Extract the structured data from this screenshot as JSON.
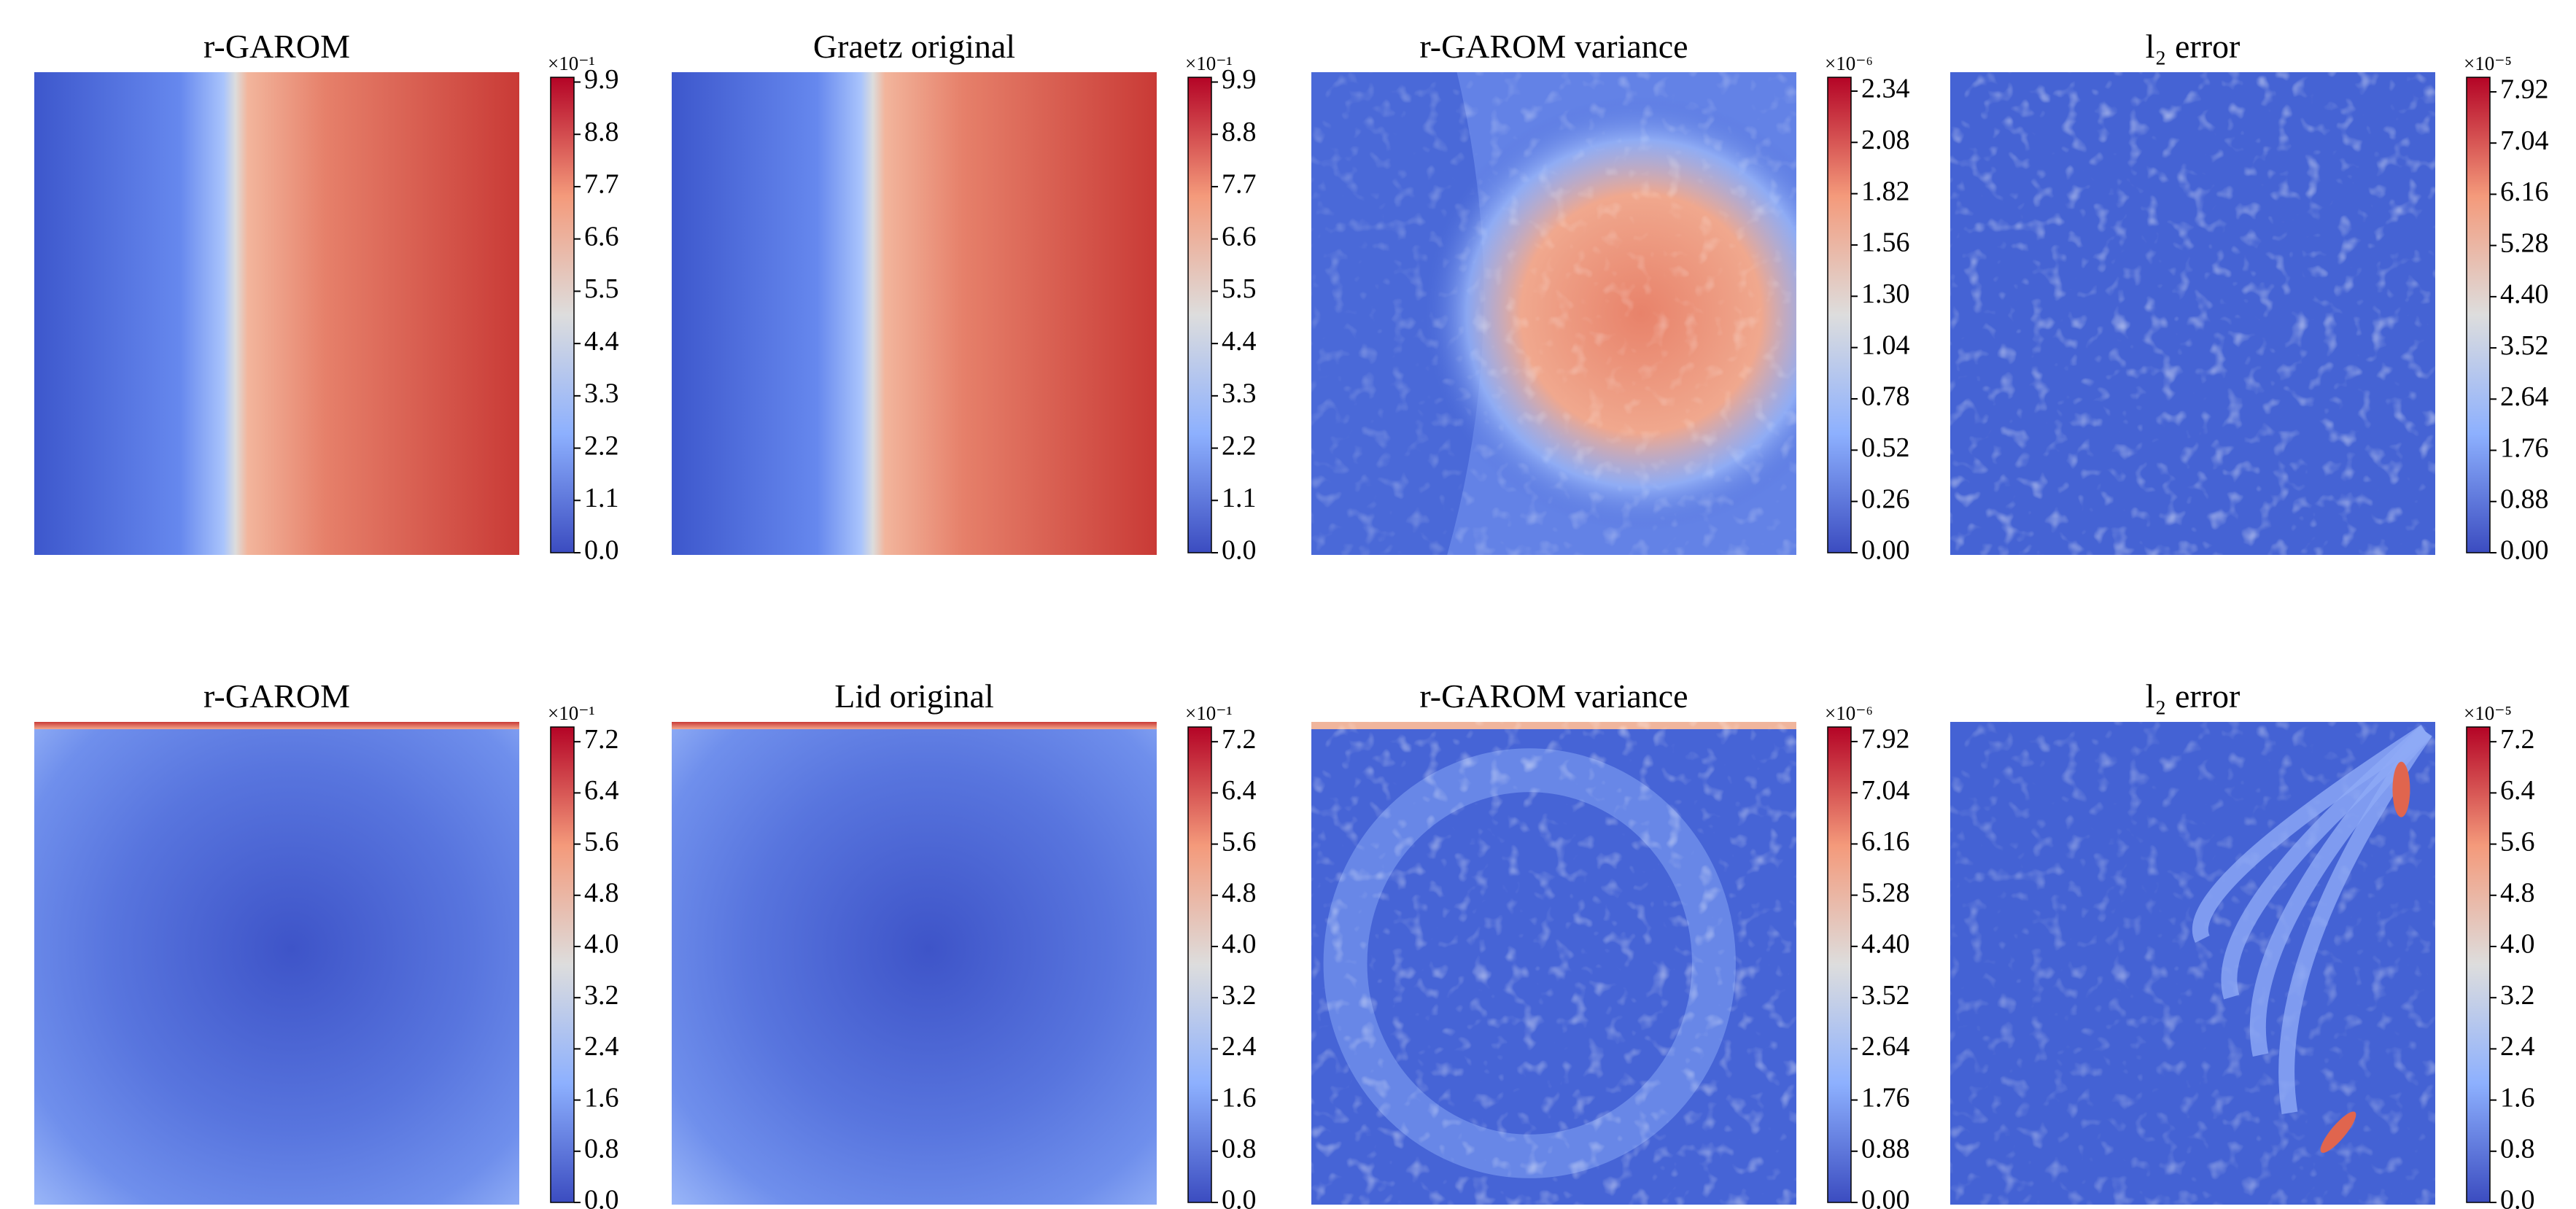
{
  "chart_data": [
    {
      "type": "heatmap",
      "title": "r-GAROM",
      "colormap": "coolwarm",
      "scale_label": "×10⁻¹",
      "ylim": [
        0,
        10.0
      ],
      "yticks": [
        {
          "value": 0,
          "label": "0.0"
        },
        1.1,
        2.2,
        3.3,
        4.4,
        5.5,
        6.6,
        7.7,
        8.8,
        9.9
      ]
    },
    {
      "type": "heatmap",
      "title": "Graetz original",
      "colormap": "coolwarm",
      "scale_label": "×10⁻¹",
      "ylim": [
        0,
        10.0
      ],
      "yticks": [
        {
          "value": 0,
          "label": "0.0"
        },
        1.1,
        2.2,
        3.3,
        4.4,
        5.5,
        6.6,
        7.7,
        8.8,
        9.9
      ]
    },
    {
      "type": "heatmap",
      "title": "r-GAROM variance",
      "colormap": "coolwarm",
      "scale_label": "×10⁻⁶",
      "ylim": [
        0,
        2.41
      ],
      "yticks": [
        {
          "value": 0,
          "label": "0.00"
        },
        0.26,
        0.52,
        0.78,
        1.04,
        {
          "value": 1.3,
          "label": "1.30"
        },
        1.56,
        1.82,
        2.08,
        2.34
      ]
    },
    {
      "type": "heatmap",
      "title": "l₂ error",
      "colormap": "coolwarm",
      "scale_label": "×10⁻⁵",
      "ylim": [
        0,
        8.17
      ],
      "yticks": [
        {
          "value": 0,
          "label": "0.00"
        },
        0.88,
        1.76,
        2.64,
        3.52,
        {
          "value": 4.4,
          "label": "4.40"
        },
        5.28,
        6.16,
        7.04,
        7.92
      ]
    },
    {
      "type": "heatmap",
      "title": "r-GAROM",
      "colormap": "coolwarm",
      "scale_label": "×10⁻¹",
      "ylim": [
        0,
        7.43
      ],
      "yticks": [
        {
          "value": 0,
          "label": "0.0"
        },
        0.8,
        1.6,
        2.4,
        3.2,
        {
          "value": 4,
          "label": "4.0"
        },
        4.8,
        5.6,
        6.4,
        7.2
      ]
    },
    {
      "type": "heatmap",
      "title": "Lid original",
      "colormap": "coolwarm",
      "scale_label": "×10⁻¹",
      "ylim": [
        0,
        7.43
      ],
      "yticks": [
        {
          "value": 0,
          "label": "0.0"
        },
        0.8,
        1.6,
        2.4,
        3.2,
        {
          "value": 4,
          "label": "4.0"
        },
        4.8,
        5.6,
        6.4,
        7.2
      ]
    },
    {
      "type": "heatmap",
      "title": "r-GAROM variance",
      "colormap": "coolwarm",
      "scale_label": "×10⁻⁶",
      "ylim": [
        0,
        8.17
      ],
      "yticks": [
        {
          "value": 0,
          "label": "0.00"
        },
        0.88,
        1.76,
        2.64,
        3.52,
        {
          "value": 4.4,
          "label": "4.40"
        },
        5.28,
        6.16,
        7.04,
        7.92
      ]
    },
    {
      "type": "heatmap",
      "title": "l₂ error",
      "colormap": "coolwarm",
      "scale_label": "×10⁻⁵",
      "ylim": [
        0,
        7.43
      ],
      "yticks": [
        {
          "value": 0,
          "label": "0.0"
        },
        0.8,
        1.6,
        2.4,
        3.2,
        {
          "value": 4,
          "label": "4.0"
        },
        4.8,
        5.6,
        6.4,
        7.2
      ]
    }
  ]
}
